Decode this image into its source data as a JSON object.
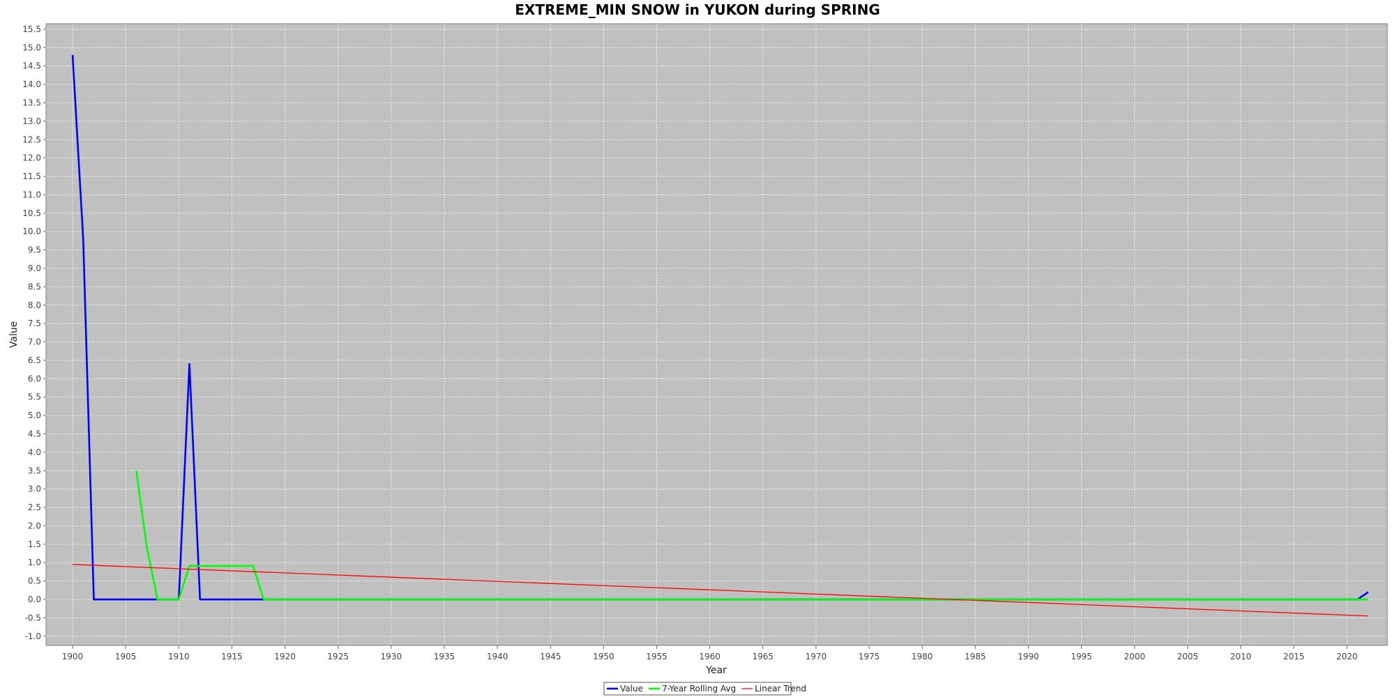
{
  "chart_data": {
    "type": "line",
    "title": "EXTREME_MIN SNOW in YUKON during SPRING",
    "xlabel": "Year",
    "ylabel": "Value",
    "xlim": [
      1897.5,
      2023.8
    ],
    "ylim": [
      -1.25,
      15.65
    ],
    "x_ticks": [
      1900,
      1905,
      1910,
      1915,
      1920,
      1925,
      1930,
      1935,
      1940,
      1945,
      1950,
      1955,
      1960,
      1965,
      1970,
      1975,
      1980,
      1985,
      1990,
      1995,
      2000,
      2005,
      2010,
      2015,
      2020
    ],
    "y_ticks": [
      "-1.0",
      "-0.5",
      "0.0",
      "0.5",
      "1.0",
      "1.5",
      "2.0",
      "2.5",
      "3.0",
      "3.5",
      "4.0",
      "4.5",
      "5.0",
      "5.5",
      "6.0",
      "6.5",
      "7.0",
      "7.5",
      "8.0",
      "8.5",
      "9.0",
      "9.5",
      "10.0",
      "10.5",
      "11.0",
      "11.5",
      "12.0",
      "12.5",
      "13.0",
      "13.5",
      "14.0",
      "14.5",
      "15.0",
      "15.5"
    ],
    "grid": true,
    "plot_background": "#c0c0c0",
    "legend_position": "bottom-center",
    "series": [
      {
        "name": "Value",
        "color": "#0000ff",
        "points": [
          [
            1900,
            14.8
          ],
          [
            1901,
            9.8
          ],
          [
            1902,
            0.0
          ],
          [
            1910,
            0.0
          ],
          [
            1911,
            6.4
          ],
          [
            1912,
            0.0
          ],
          [
            2021,
            0.0
          ],
          [
            2022,
            0.2
          ]
        ]
      },
      {
        "name": "7-Year Rolling Avg",
        "color": "#00ff00",
        "points": [
          [
            1906,
            3.5
          ],
          [
            1907,
            1.4
          ],
          [
            1908,
            0.0
          ],
          [
            1910,
            0.0
          ],
          [
            1911,
            0.91
          ],
          [
            1917,
            0.91
          ],
          [
            1918,
            0.0
          ],
          [
            2022,
            0.0
          ]
        ]
      },
      {
        "name": "Linear Trend",
        "color": "#ff0000",
        "points": [
          [
            1900,
            0.95
          ],
          [
            2022,
            -0.45
          ]
        ]
      }
    ]
  }
}
